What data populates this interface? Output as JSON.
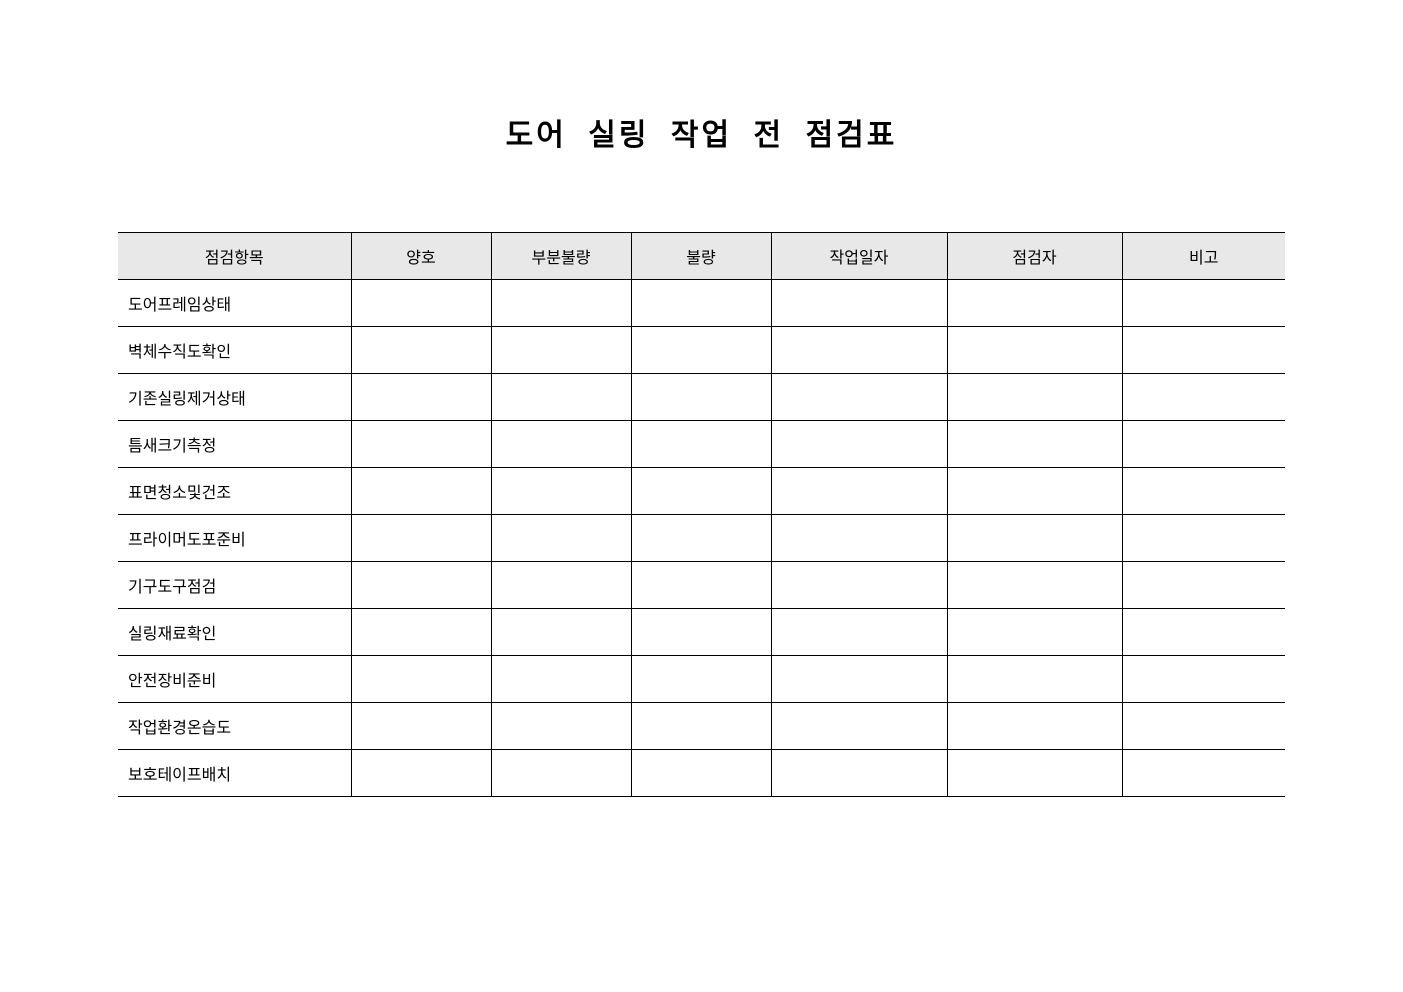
{
  "title": "도어 실링 작업 전 점검표",
  "headers": [
    "점검항목",
    "양호",
    "부분불량",
    "불량",
    "작업일자",
    "점검자",
    "비고"
  ],
  "items": [
    "도어프레임상태",
    "벽체수직도확인",
    "기존실링제거상태",
    "틈새크기측정",
    "표면청소및건조",
    "프라이머도포준비",
    "기구도구점검",
    "실링재료확인",
    "안전장비준비",
    "작업환경온습도",
    "보호테이프배치"
  ]
}
